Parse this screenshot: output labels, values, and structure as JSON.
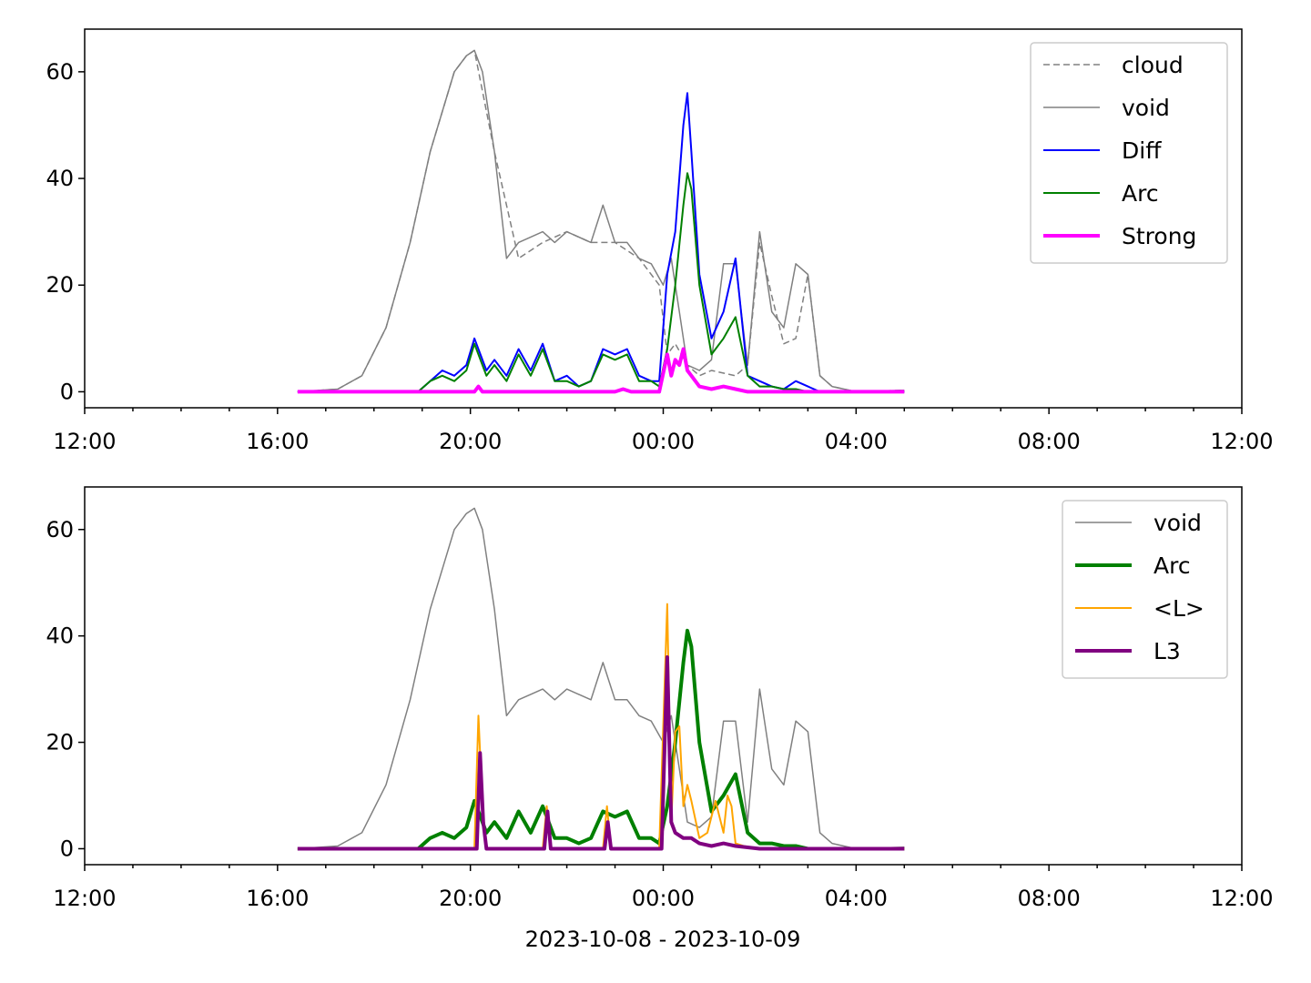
{
  "chart_data": [
    {
      "type": "line",
      "xlim": [
        "2023-10-08 12:00",
        "2023-10-09 12:00"
      ],
      "ylim": [
        -3,
        68
      ],
      "x_ticks": [
        "12:00",
        "16:00",
        "20:00",
        "00:00",
        "04:00",
        "08:00",
        "12:00"
      ],
      "y_ticks": [
        "0",
        "20",
        "40",
        "60"
      ],
      "legend_position": "top-right",
      "series": [
        {
          "name": "cloud",
          "color": "#808080",
          "style": "dashed",
          "width": 1.5,
          "x": [
            "16:25",
            "17:15",
            "17:45",
            "18:15",
            "18:45",
            "19:10",
            "19:40",
            "19:55",
            "20:05",
            "20:30",
            "21:00",
            "21:30",
            "22:00",
            "22:30",
            "23:00",
            "23:30",
            "23:55",
            "00:05",
            "00:15",
            "00:30",
            "00:45",
            "01:00",
            "01:30",
            "01:45",
            "02:00",
            "02:15",
            "02:30",
            "02:45",
            "03:00",
            "03:15",
            "03:30",
            "04:00",
            "05:00"
          ],
          "y": [
            0,
            0.5,
            3,
            12,
            28,
            45,
            60,
            63,
            64,
            45,
            25,
            28,
            30,
            28,
            28,
            25,
            20,
            7,
            9,
            5,
            3,
            4,
            3,
            5,
            28,
            18,
            9,
            10,
            22,
            3,
            1,
            0,
            0.3
          ]
        },
        {
          "name": "void",
          "color": "#808080",
          "style": "solid",
          "width": 1.5,
          "x": [
            "16:25",
            "17:15",
            "17:45",
            "18:15",
            "18:45",
            "19:10",
            "19:40",
            "19:55",
            "20:05",
            "20:15",
            "20:30",
            "20:45",
            "21:00",
            "21:30",
            "21:45",
            "22:00",
            "22:30",
            "22:45",
            "23:00",
            "23:15",
            "23:30",
            "23:45",
            "00:00",
            "00:10",
            "00:20",
            "00:30",
            "00:45",
            "01:00",
            "01:15",
            "01:30",
            "01:45",
            "02:00",
            "02:15",
            "02:30",
            "02:45",
            "03:00",
            "03:15",
            "03:30",
            "04:00",
            "05:00"
          ],
          "y": [
            0,
            0.5,
            3,
            12,
            28,
            45,
            60,
            63,
            64,
            60,
            45,
            25,
            28,
            30,
            28,
            30,
            28,
            35,
            28,
            28,
            25,
            24,
            20,
            25,
            15,
            5,
            4,
            6,
            24,
            24,
            5,
            30,
            15,
            12,
            24,
            22,
            3,
            1,
            0,
            0.3
          ]
        },
        {
          "name": "Diff",
          "color": "#0000ff",
          "style": "solid",
          "width": 2,
          "x": [
            "16:25",
            "18:55",
            "19:10",
            "19:25",
            "19:40",
            "19:55",
            "20:05",
            "20:20",
            "20:30",
            "20:45",
            "21:00",
            "21:15",
            "21:30",
            "21:45",
            "22:00",
            "22:15",
            "22:30",
            "22:45",
            "23:00",
            "23:15",
            "23:30",
            "23:45",
            "23:55",
            "00:05",
            "00:15",
            "00:25",
            "00:30",
            "00:35",
            "00:45",
            "01:00",
            "01:15",
            "01:30",
            "01:45",
            "02:00",
            "02:15",
            "02:30",
            "02:45",
            "03:00",
            "03:15",
            "04:00",
            "05:00"
          ],
          "y": [
            0,
            0,
            2,
            4,
            3,
            5,
            10,
            4,
            6,
            3,
            8,
            4,
            9,
            2,
            3,
            1,
            2,
            8,
            7,
            8,
            3,
            2,
            2,
            22,
            30,
            50,
            56,
            45,
            22,
            10,
            15,
            25,
            3,
            2,
            1,
            0.5,
            2,
            1,
            0,
            0,
            0
          ]
        },
        {
          "name": "Arc",
          "color": "#008000",
          "style": "solid",
          "width": 2,
          "x": [
            "16:25",
            "18:55",
            "19:10",
            "19:25",
            "19:40",
            "19:55",
            "20:05",
            "20:20",
            "20:30",
            "20:45",
            "21:00",
            "21:15",
            "21:30",
            "21:45",
            "22:00",
            "22:15",
            "22:30",
            "22:45",
            "23:00",
            "23:15",
            "23:30",
            "23:45",
            "23:55",
            "00:05",
            "00:15",
            "00:25",
            "00:30",
            "00:35",
            "00:45",
            "01:00",
            "01:15",
            "01:30",
            "01:45",
            "02:00",
            "02:15",
            "02:30",
            "02:45",
            "03:00",
            "04:00",
            "05:00"
          ],
          "y": [
            0,
            0,
            2,
            3,
            2,
            4,
            9,
            3,
            5,
            2,
            7,
            3,
            8,
            2,
            2,
            1,
            2,
            7,
            6,
            7,
            2,
            2,
            1,
            8,
            20,
            35,
            41,
            38,
            20,
            7,
            10,
            14,
            3,
            1,
            1,
            0.5,
            0.5,
            0,
            0,
            0
          ]
        },
        {
          "name": "Strong",
          "color": "#ff00ff",
          "style": "solid",
          "width": 4,
          "x": [
            "16:25",
            "20:05",
            "20:10",
            "20:15",
            "21:00",
            "22:00",
            "23:00",
            "23:10",
            "23:20",
            "23:30",
            "23:55",
            "00:05",
            "00:10",
            "00:15",
            "00:20",
            "00:25",
            "00:30",
            "00:35",
            "00:45",
            "01:00",
            "01:15",
            "01:30",
            "01:45",
            "02:00",
            "04:00",
            "05:00"
          ],
          "y": [
            0,
            0,
            1,
            0,
            0,
            0,
            0,
            0.5,
            0,
            0,
            0,
            7,
            3,
            6,
            5,
            8,
            4,
            3,
            1,
            0.5,
            1,
            0.5,
            0,
            0,
            0,
            0
          ]
        }
      ]
    },
    {
      "type": "line",
      "xlim": [
        "2023-10-08 12:00",
        "2023-10-09 12:00"
      ],
      "ylim": [
        -3,
        68
      ],
      "x_ticks": [
        "12:00",
        "16:00",
        "20:00",
        "00:00",
        "04:00",
        "08:00",
        "12:00"
      ],
      "y_ticks": [
        "0",
        "20",
        "40",
        "60"
      ],
      "xlabel": "2023-10-08 - 2023-10-09",
      "legend_position": "top-right",
      "series": [
        {
          "name": "void",
          "color": "#808080",
          "style": "solid",
          "width": 1.5,
          "x": [
            "16:25",
            "17:15",
            "17:45",
            "18:15",
            "18:45",
            "19:10",
            "19:40",
            "19:55",
            "20:05",
            "20:15",
            "20:30",
            "20:45",
            "21:00",
            "21:30",
            "21:45",
            "22:00",
            "22:30",
            "22:45",
            "23:00",
            "23:15",
            "23:30",
            "23:45",
            "00:00",
            "00:10",
            "00:20",
            "00:30",
            "00:45",
            "01:00",
            "01:15",
            "01:30",
            "01:45",
            "02:00",
            "02:15",
            "02:30",
            "02:45",
            "03:00",
            "03:15",
            "03:30",
            "04:00",
            "05:00"
          ],
          "y": [
            0,
            0.5,
            3,
            12,
            28,
            45,
            60,
            63,
            64,
            60,
            45,
            25,
            28,
            30,
            28,
            30,
            28,
            35,
            28,
            28,
            25,
            24,
            20,
            25,
            15,
            5,
            4,
            6,
            24,
            24,
            5,
            30,
            15,
            12,
            24,
            22,
            3,
            1,
            0,
            0.3
          ]
        },
        {
          "name": "Arc",
          "color": "#008000",
          "style": "solid",
          "width": 4,
          "x": [
            "16:25",
            "18:55",
            "19:10",
            "19:25",
            "19:40",
            "19:55",
            "20:05",
            "20:20",
            "20:30",
            "20:45",
            "21:00",
            "21:15",
            "21:30",
            "21:45",
            "22:00",
            "22:15",
            "22:30",
            "22:45",
            "23:00",
            "23:15",
            "23:30",
            "23:45",
            "23:55",
            "00:05",
            "00:15",
            "00:25",
            "00:30",
            "00:35",
            "00:45",
            "01:00",
            "01:15",
            "01:30",
            "01:45",
            "02:00",
            "02:15",
            "02:30",
            "02:45",
            "03:00",
            "04:00",
            "05:00"
          ],
          "y": [
            0,
            0,
            2,
            3,
            2,
            4,
            9,
            3,
            5,
            2,
            7,
            3,
            8,
            2,
            2,
            1,
            2,
            7,
            6,
            7,
            2,
            2,
            1,
            8,
            20,
            35,
            41,
            38,
            20,
            7,
            10,
            14,
            3,
            1,
            1,
            0.5,
            0.5,
            0,
            0,
            0
          ]
        },
        {
          "name": "<L>",
          "color": "#ffa500",
          "style": "solid",
          "width": 2,
          "x": [
            "16:25",
            "20:05",
            "20:10",
            "20:15",
            "20:20",
            "21:30",
            "21:35",
            "21:40",
            "22:45",
            "22:50",
            "22:55",
            "23:55",
            "00:05",
            "00:10",
            "00:15",
            "00:20",
            "00:25",
            "00:30",
            "00:35",
            "00:45",
            "00:55",
            "01:05",
            "01:15",
            "01:20",
            "01:25",
            "01:30",
            "01:40",
            "02:00",
            "05:00"
          ],
          "y": [
            0,
            0,
            25,
            8,
            0,
            0,
            8,
            0,
            0,
            8,
            0,
            0,
            46,
            5,
            22,
            23,
            8,
            12,
            9,
            2,
            3,
            9,
            3,
            10,
            8,
            1,
            0.5,
            0,
            0
          ]
        },
        {
          "name": "L3",
          "color": "#800080",
          "style": "solid",
          "width": 4,
          "x": [
            "16:25",
            "20:08",
            "20:12",
            "20:16",
            "20:20",
            "21:32",
            "21:36",
            "21:40",
            "22:47",
            "22:51",
            "22:55",
            "23:58",
            "00:05",
            "00:10",
            "00:15",
            "00:25",
            "00:35",
            "00:45",
            "01:00",
            "01:15",
            "01:30",
            "02:00",
            "05:00"
          ],
          "y": [
            0,
            0,
            18,
            5,
            0,
            0,
            7,
            0,
            0,
            5,
            0,
            0,
            36,
            5,
            3,
            2,
            2,
            1,
            0.5,
            1,
            0.5,
            0,
            0
          ]
        }
      ]
    }
  ]
}
